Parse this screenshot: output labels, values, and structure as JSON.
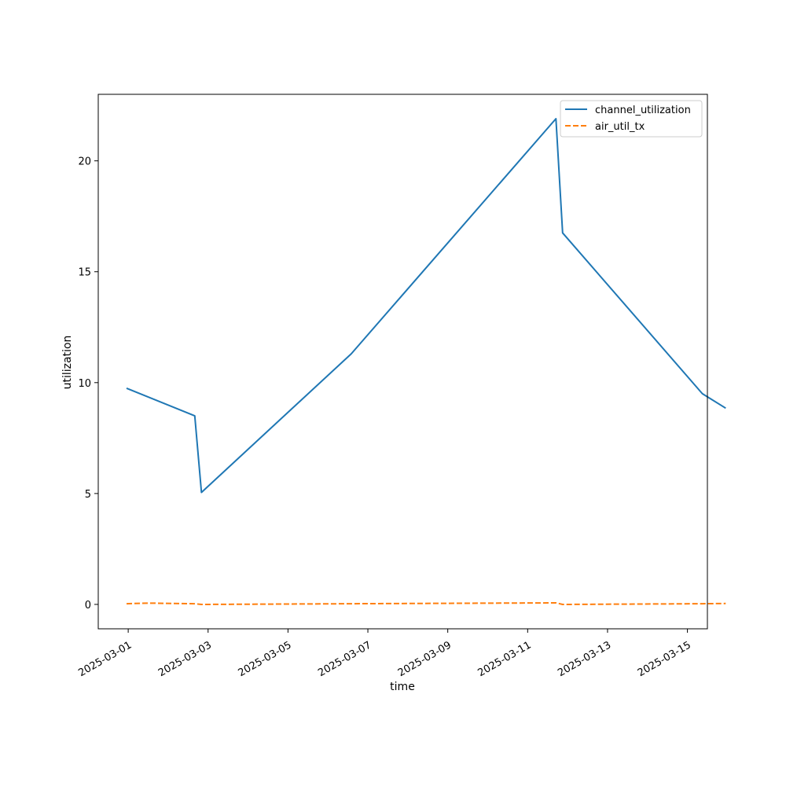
{
  "chart_data": {
    "type": "line",
    "title": "",
    "xlabel": "time",
    "ylabel": "utilization",
    "x_type": "date",
    "xlim": [
      "2025-02-28T06:00",
      "2025-03-15T12:00"
    ],
    "ylim": [
      -1.1,
      23.0
    ],
    "x_ticks": [
      "2025-03-01",
      "2025-03-03",
      "2025-03-05",
      "2025-03-07",
      "2025-03-09",
      "2025-03-11",
      "2025-03-13",
      "2025-03-15"
    ],
    "y_ticks": [
      0,
      5,
      10,
      15,
      20
    ],
    "grid": false,
    "legend_position": "top-right",
    "series": [
      {
        "name": "channel_utilization",
        "color": "#1f77b4",
        "dash": "solid",
        "x": [
          "2025-02-28T23:00",
          "2025-03-02T16:00",
          "2025-03-02T20:00",
          "2025-03-06T14:00",
          "2025-03-11T17:00",
          "2025-03-11T21:00",
          "2025-03-15T09:00",
          "2025-03-15T23:00"
        ],
        "y": [
          9.75,
          8.5,
          5.05,
          11.3,
          21.9,
          16.75,
          9.5,
          8.85
        ]
      },
      {
        "name": "air_util_tx",
        "color": "#ff7f0e",
        "dash": "dashed",
        "x": [
          "2025-02-28T23:00",
          "2025-03-01T12:00",
          "2025-03-02T16:00",
          "2025-03-02T20:00",
          "2025-03-06T14:00",
          "2025-03-11T17:00",
          "2025-03-11T21:00",
          "2025-03-15T09:00",
          "2025-03-15T23:00"
        ],
        "y": [
          0.03,
          0.06,
          0.03,
          0.0,
          0.03,
          0.07,
          0.0,
          0.03,
          0.04
        ]
      }
    ]
  }
}
